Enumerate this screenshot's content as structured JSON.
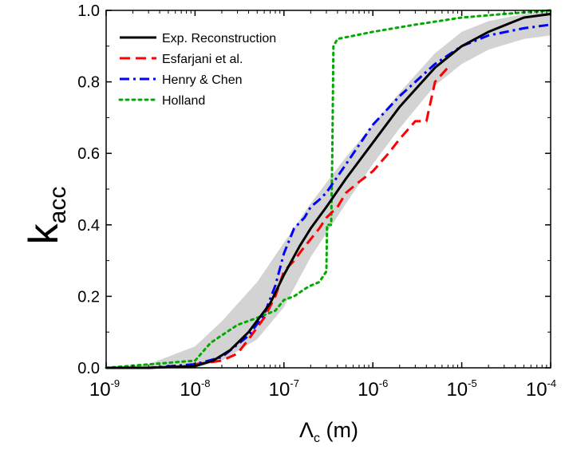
{
  "chart_data": {
    "type": "line",
    "xscale": "log",
    "xlim": [
      1e-09,
      0.0001
    ],
    "ylim": [
      0,
      1.0
    ],
    "xlabel": "Λc (m)",
    "ylabel": "kacc",
    "x_ticks": [
      {
        "base": "10",
        "exp": "-9",
        "value": 1e-09
      },
      {
        "base": "10",
        "exp": "-8",
        "value": 1e-08
      },
      {
        "base": "10",
        "exp": "-7",
        "value": 1e-07
      },
      {
        "base": "10",
        "exp": "-6",
        "value": 1e-06
      },
      {
        "base": "10",
        "exp": "-5",
        "value": 1e-05
      },
      {
        "base": "10",
        "exp": "-4",
        "value": 0.0001
      }
    ],
    "y_ticks": [
      {
        "label": "0.0",
        "value": 0.0
      },
      {
        "label": "0.2",
        "value": 0.2
      },
      {
        "label": "0.4",
        "value": 0.4
      },
      {
        "label": "0.6",
        "value": 0.6
      },
      {
        "label": "0.8",
        "value": 0.8
      },
      {
        "label": "1.0",
        "value": 1.0
      }
    ],
    "legend_position": "top-left",
    "band": {
      "x": [
        1e-09,
        3e-09,
        1e-08,
        2e-08,
        5e-08,
        1e-07,
        2e-07,
        5e-07,
        1e-06,
        2e-06,
        5e-06,
        1e-05,
        2e-05,
        5e-05,
        0.0001
      ],
      "lower": [
        0.0,
        0.0,
        0.0,
        0.02,
        0.08,
        0.17,
        0.31,
        0.46,
        0.57,
        0.67,
        0.79,
        0.85,
        0.89,
        0.92,
        0.93
      ],
      "upper": [
        0.0,
        0.01,
        0.06,
        0.13,
        0.24,
        0.35,
        0.46,
        0.59,
        0.68,
        0.77,
        0.88,
        0.94,
        0.97,
        0.99,
        1.0
      ]
    },
    "series": [
      {
        "name": "Exp. Reconstruction",
        "color": "#000000",
        "dash": "solid",
        "x": [
          1e-09,
          3e-09,
          1e-08,
          1.6e-08,
          2.5e-08,
          4e-08,
          7e-08,
          1e-07,
          1.5e-07,
          2e-07,
          3e-07,
          5e-07,
          1e-06,
          2e-06,
          5e-06,
          1e-05,
          2e-05,
          5e-05,
          0.0001
        ],
        "y": [
          0.0,
          0.0,
          0.005,
          0.02,
          0.05,
          0.1,
          0.18,
          0.26,
          0.34,
          0.39,
          0.45,
          0.53,
          0.63,
          0.73,
          0.84,
          0.9,
          0.94,
          0.98,
          0.99
        ]
      },
      {
        "name": "Esfarjani et al.",
        "color": "#ff0000",
        "dash": "dashed",
        "x": [
          1e-08,
          2e-08,
          3e-08,
          4e-08,
          6e-08,
          8e-08,
          1e-07,
          1.3e-07,
          1.6e-07,
          2e-07,
          2.5e-07,
          3e-07,
          4e-07,
          5e-07,
          7e-07,
          1e-06,
          1.5e-06,
          2e-06,
          3e-06,
          4e-06,
          5e-06,
          7e-06
        ],
        "y": [
          0.01,
          0.02,
          0.04,
          0.08,
          0.14,
          0.2,
          0.27,
          0.3,
          0.33,
          0.36,
          0.39,
          0.42,
          0.45,
          0.49,
          0.52,
          0.55,
          0.6,
          0.64,
          0.69,
          0.69,
          0.8,
          0.84
        ]
      },
      {
        "name": "Henry & Chen",
        "color": "#0000ff",
        "dash": "dashdot",
        "x": [
          1e-09,
          3e-09,
          1e-08,
          2e-08,
          4e-08,
          6e-08,
          8e-08,
          1e-07,
          1.3e-07,
          1.7e-07,
          2e-07,
          2.5e-07,
          3e-07,
          5e-07,
          1e-06,
          2e-06,
          5e-06,
          1e-05,
          2e-05,
          5e-05,
          0.0001
        ],
        "y": [
          0.0,
          0.0,
          0.01,
          0.03,
          0.09,
          0.15,
          0.23,
          0.32,
          0.39,
          0.42,
          0.45,
          0.47,
          0.49,
          0.57,
          0.68,
          0.76,
          0.85,
          0.9,
          0.93,
          0.95,
          0.96
        ]
      },
      {
        "name": "Holland",
        "color": "#00aa00",
        "dash": "dotted",
        "x": [
          1e-09,
          1e-08,
          1.5e-08,
          3e-08,
          5e-08,
          8e-08,
          1e-07,
          1.3e-07,
          1.7e-07,
          2e-07,
          2.5e-07,
          3e-07,
          3.05e-07,
          3.2e-07,
          3.4e-07,
          3.5e-07,
          3.6e-07,
          4e-07,
          1e-06,
          3e-06,
          1e-05,
          3e-05,
          0.0001
        ],
        "y": [
          0.0,
          0.02,
          0.07,
          0.12,
          0.14,
          0.16,
          0.19,
          0.2,
          0.22,
          0.23,
          0.24,
          0.27,
          0.4,
          0.4,
          0.4,
          0.6,
          0.9,
          0.92,
          0.94,
          0.96,
          0.98,
          0.99,
          1.0
        ]
      }
    ]
  }
}
